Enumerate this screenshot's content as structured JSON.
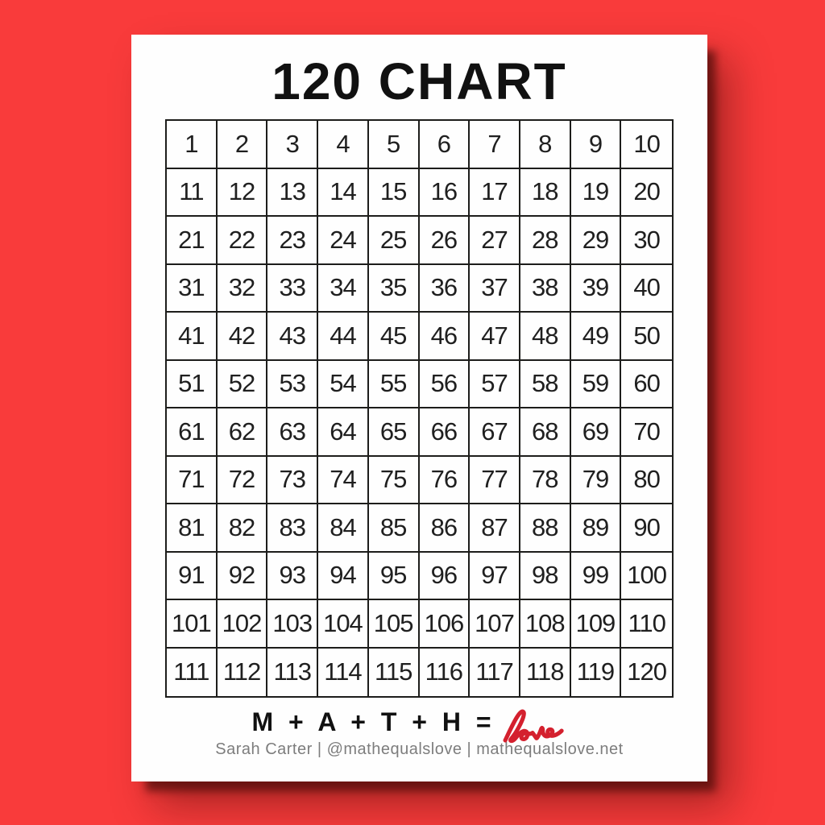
{
  "title": "120 CHART",
  "grid": {
    "rows": 12,
    "cols": 10,
    "numbers": [
      1,
      2,
      3,
      4,
      5,
      6,
      7,
      8,
      9,
      10,
      11,
      12,
      13,
      14,
      15,
      16,
      17,
      18,
      19,
      20,
      21,
      22,
      23,
      24,
      25,
      26,
      27,
      28,
      29,
      30,
      31,
      32,
      33,
      34,
      35,
      36,
      37,
      38,
      39,
      40,
      41,
      42,
      43,
      44,
      45,
      46,
      47,
      48,
      49,
      50,
      51,
      52,
      53,
      54,
      55,
      56,
      57,
      58,
      59,
      60,
      61,
      62,
      63,
      64,
      65,
      66,
      67,
      68,
      69,
      70,
      71,
      72,
      73,
      74,
      75,
      76,
      77,
      78,
      79,
      80,
      81,
      82,
      83,
      84,
      85,
      86,
      87,
      88,
      89,
      90,
      91,
      92,
      93,
      94,
      95,
      96,
      97,
      98,
      99,
      100,
      101,
      102,
      103,
      104,
      105,
      106,
      107,
      108,
      109,
      110,
      111,
      112,
      113,
      114,
      115,
      116,
      117,
      118,
      119,
      120
    ]
  },
  "footer": {
    "equation": "M + A + T + H =",
    "love_word": "love",
    "attribution": "Sarah Carter | @mathequalslove | mathequalslove.net"
  },
  "colors": {
    "background-red": "#f93b3b",
    "page-white": "#fefefe",
    "grid-line": "#1d1d1b",
    "number-black": "#1f1f1f",
    "title-black": "#111111",
    "attribution-gray": "#7d7d7d",
    "love-red": "#d4202e"
  }
}
